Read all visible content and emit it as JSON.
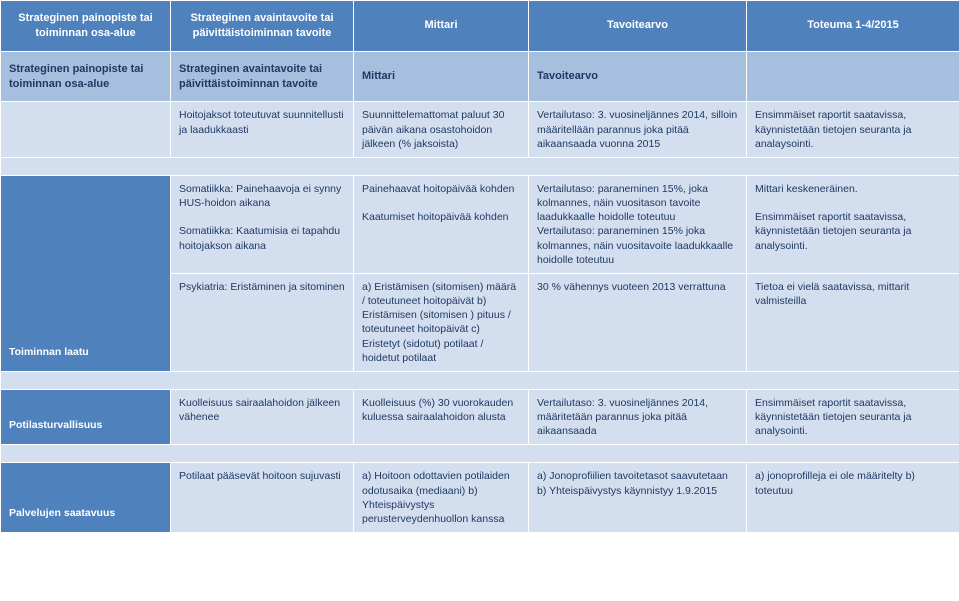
{
  "colors": {
    "header_bg": "#4f81bd",
    "header_fg": "#ffffff",
    "subheader_bg": "#a7bfde",
    "body_bg": "#d3dfee",
    "body_fg": "#1f3864",
    "border": "#ffffff"
  },
  "columns": {
    "col1_w": 170,
    "col2_w": 183,
    "col3_w": 175,
    "col4_w": 218,
    "col5_w": 213
  },
  "header": {
    "c1": "Strateginen painopiste tai toiminnan osa-alue",
    "c2": "Strateginen avaintavoite tai päivittäistoiminnan tavoite",
    "c3": "Mittari",
    "c4": "Tavoitearvo",
    "c5": "Toteuma 1-4/2015"
  },
  "subheader": {
    "c1": "Strateginen painopiste tai toiminnan osa-alue",
    "c2": "Strateginen avaintavoite tai päivittäistoiminnan tavoite",
    "c3": "Mittari",
    "c4": "Tavoitearvo",
    "c5": ""
  },
  "rows": [
    {
      "section": "",
      "c2": "Hoitojaksot toteutuvat suunnitellusti ja laadukkaasti",
      "c3": "Suunnittelemattomat paluut 30 päivän aikana osastohoidon jälkeen (% jaksoista)",
      "c4": "Vertailutaso: 3. vuosineljännes 2014, silloin määritellään parannus joka pitää aikaansaada vuonna 2015",
      "c5": "Ensimmäiset raportit saatavissa, käynnistetään tietojen seuranta ja analaysointi."
    },
    {
      "section": "Toiminnan laatu",
      "c2a": "Somatiikka: Painehaavoja ei synny HUS-hoidon aikana",
      "c2b": "Somatiikka: Kaatumisia ei tapahdu hoitojakson aikana",
      "c3a": "Painehaavat hoitopäivää kohden",
      "c3b": "Kaatumiset hoitopäivää kohden",
      "c4a": "Vertailutaso: paraneminen 15%, joka kolmannes, näin vuositason tavoite laadukkaalle hoidolle toteutuu",
      "c4b": "Vertailutaso: paraneminen 15% joka kolmannes, näin vuositavoite laadukkaalle hoidolle toteutuu",
      "c5a": "Mittari keskeneräinen.",
      "c5b": "Ensimmäiset raportit saatavissa, käynnistetään tietojen seuranta ja analysointi."
    },
    {
      "c2": "Psykiatria: Eristäminen ja sitominen",
      "c3": "a) Eristämisen (sitomisen) määrä / toteutuneet hoitopäivät\nb) Eristämisen (sitomisen ) pituus / toteutuneet hoitopäivät\nc) Eristetyt (sidotut) potilaat / hoidetut potilaat",
      "c4": "30 % vähennys vuoteen 2013 verrattuna",
      "c5": "Tietoa ei vielä saatavissa, mittarit valmisteilla"
    },
    {
      "section": "Potilasturvallisuus",
      "c2": "Kuolleisuus sairaalahoidon jälkeen vähenee",
      "c3": "Kuolleisuus (%) 30 vuorokauden kuluessa sairaalahoidon alusta",
      "c4": "Vertailutaso: 3. vuosineljännes 2014, määritetään parannus joka pitää aikaansaada",
      "c5": "Ensimmäiset raportit saatavissa, käynnistetään tietojen seuranta ja analysointi."
    },
    {
      "section": "Palvelujen saatavuus",
      "c2": "Potilaat pääsevät hoitoon sujuvasti",
      "c3": "a) Hoitoon odottavien potilaiden odotusaika (mediaani)\nb) Yhteispäivystys perusterveydenhuollon kanssa",
      "c4": "a) Jonoprofiilien tavoitetasot saavutetaan\nb) Yhteispäivystys käynnistyy 1.9.2015",
      "c5": "a) jonoprofilleja ei ole määritelty\nb) toteutuu"
    }
  ]
}
